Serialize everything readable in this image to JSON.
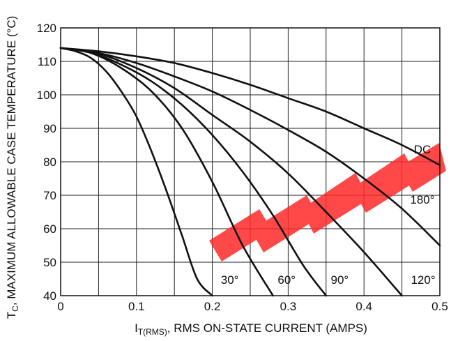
{
  "chart_data": {
    "type": "line",
    "title": "",
    "xlabel_main": "I",
    "xlabel_sub": "T(RMS)",
    "xlabel_rest": ", RMS ON-STATE CURRENT (AMPS)",
    "ylabel_main": "T",
    "ylabel_sub": "C",
    "ylabel_rest": ", MAXIMUM ALLOWABLE CASE TEMPERATURE (°C)",
    "xlim": [
      0,
      0.5
    ],
    "ylim": [
      40,
      120
    ],
    "xticks": [
      "0",
      "0.1",
      "0.2",
      "0.3",
      "0.4",
      "0.5"
    ],
    "yticks": [
      "40",
      "50",
      "60",
      "70",
      "80",
      "90",
      "100",
      "110",
      "120"
    ],
    "grid": true,
    "series": [
      {
        "name": "30°",
        "x": [
          0,
          0.02,
          0.04,
          0.06,
          0.08,
          0.1,
          0.12,
          0.14,
          0.16,
          0.18,
          0.2
        ],
        "y": [
          114,
          113,
          111,
          107,
          101,
          93.5,
          83,
          71,
          58,
          45,
          40
        ]
      },
      {
        "name": "60°",
        "x": [
          0,
          0.04,
          0.08,
          0.12,
          0.16,
          0.2,
          0.24,
          0.28
        ],
        "y": [
          114,
          112.5,
          108,
          101,
          90,
          74,
          55,
          40
        ]
      },
      {
        "name": "90°",
        "x": [
          0,
          0.04,
          0.08,
          0.12,
          0.16,
          0.2,
          0.24,
          0.28,
          0.32,
          0.35
        ],
        "y": [
          114,
          112.6,
          109,
          104,
          97,
          88,
          77,
          64,
          49,
          40
        ]
      },
      {
        "name": "120°",
        "x": [
          0,
          0.05,
          0.1,
          0.15,
          0.2,
          0.25,
          0.3,
          0.35,
          0.4,
          0.45
        ],
        "y": [
          114,
          112.3,
          108,
          102,
          94,
          86,
          76.5,
          65,
          53,
          40
        ]
      },
      {
        "name": "180°",
        "x": [
          0,
          0.05,
          0.1,
          0.15,
          0.2,
          0.25,
          0.3,
          0.35,
          0.4,
          0.45,
          0.5
        ],
        "y": [
          114,
          112.5,
          109.5,
          105.5,
          101,
          95.5,
          89.5,
          83,
          75,
          66,
          55
        ]
      },
      {
        "name": "DC",
        "x": [
          0,
          0.05,
          0.1,
          0.15,
          0.2,
          0.25,
          0.3,
          0.35,
          0.4,
          0.45,
          0.5
        ],
        "y": [
          114,
          113,
          111.5,
          109.5,
          106.5,
          103,
          99,
          95,
          90,
          85,
          79
        ]
      }
    ]
  }
}
